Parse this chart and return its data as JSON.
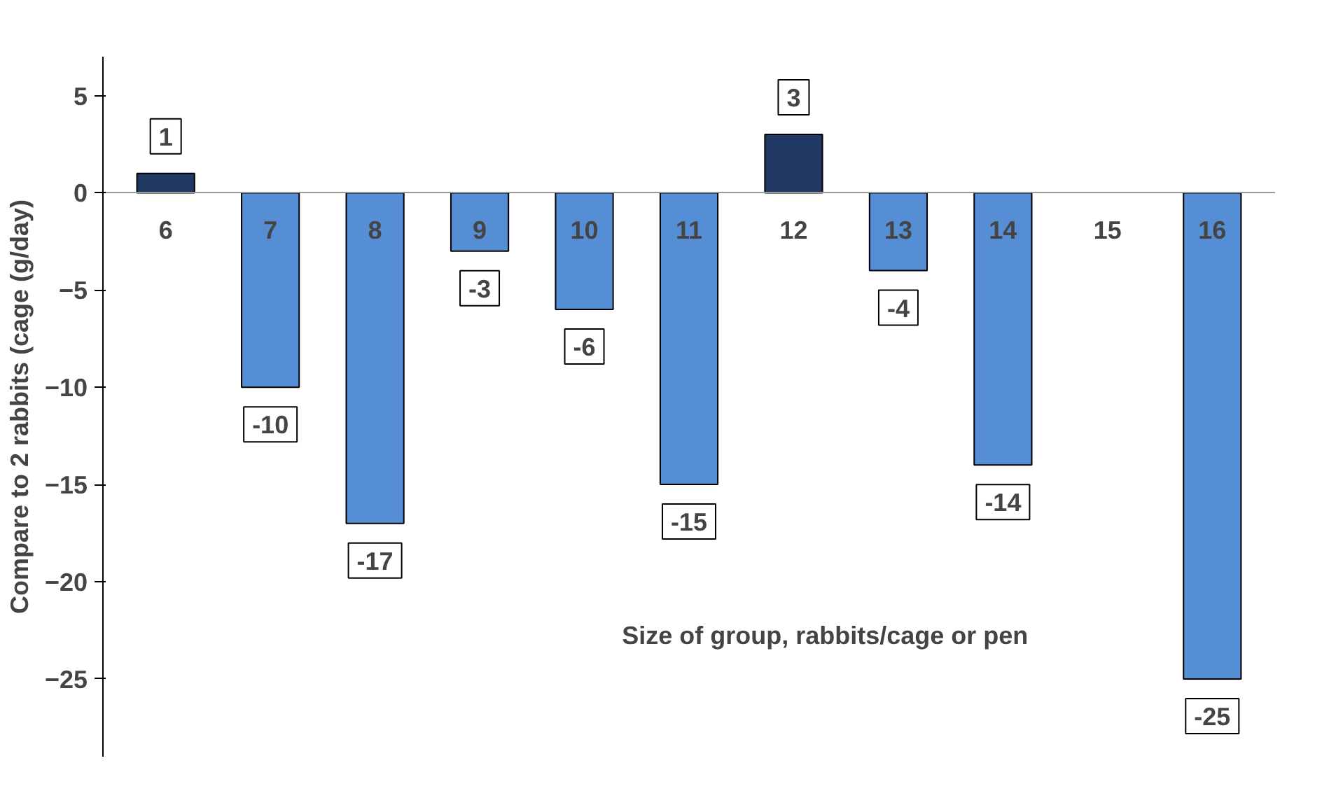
{
  "chart_data": {
    "type": "bar",
    "ylabel": "Compare to 2 rabbits (cage (g/day)",
    "xlabel": "Size of group, rabbits/cage or pen",
    "categories": [
      "6",
      "7",
      "8",
      "9",
      "10",
      "11",
      "12",
      "13",
      "14",
      "15",
      "16"
    ],
    "values": [
      1,
      -10,
      -17,
      -3,
      -6,
      -15,
      3,
      -4,
      -14,
      null,
      -25
    ],
    "colors": [
      "#1f3864",
      "#558ed5",
      "#558ed5",
      "#558ed5",
      "#558ed5",
      "#558ed5",
      "#1f3864",
      "#558ed5",
      "#558ed5",
      "#558ed5",
      "#558ed5"
    ],
    "ylim": [
      -29,
      7
    ],
    "yticks": [
      -25,
      -20,
      -15,
      -10,
      -5,
      0,
      5
    ],
    "data_labels": true,
    "grid": false
  }
}
